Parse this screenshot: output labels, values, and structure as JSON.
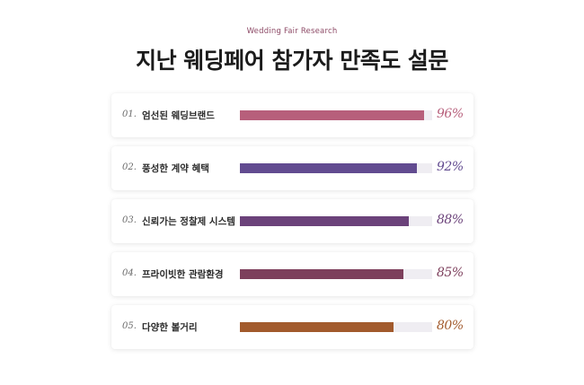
{
  "header": {
    "eyebrow": "Wedding Fair Research",
    "title": "지난 웨딩페어 참가자 만족도 설문"
  },
  "items": [
    {
      "num": "01.",
      "label": "엄선된 웨딩브랜드",
      "percent_text": "96%",
      "value": 96,
      "color": "#b75f7b"
    },
    {
      "num": "02.",
      "label": "풍성한 계약 혜택",
      "percent_text": "92%",
      "value": 92,
      "color": "#624b90"
    },
    {
      "num": "03.",
      "label": "신뢰가는 정찰제 시스템",
      "percent_text": "88%",
      "value": 88,
      "color": "#6b427a"
    },
    {
      "num": "04.",
      "label": "프라이빗한 관람환경",
      "percent_text": "85%",
      "value": 85,
      "color": "#7d3f5c"
    },
    {
      "num": "05.",
      "label": "다양한 볼거리",
      "percent_text": "80%",
      "value": 80,
      "color": "#a25a2c"
    }
  ]
}
